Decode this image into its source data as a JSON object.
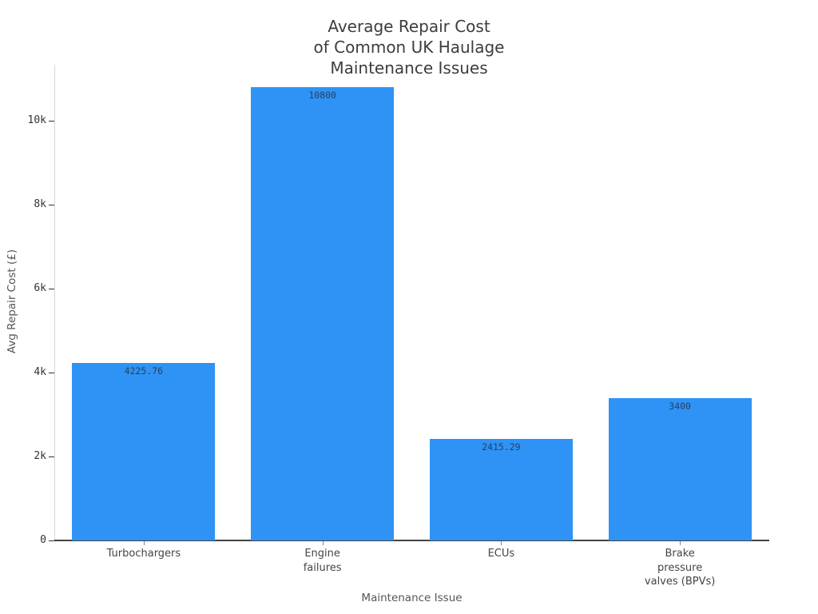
{
  "chart_data": {
    "type": "bar",
    "title": "Average Repair Cost\nof Common UK Haulage\nMaintenance Issues",
    "xlabel": "Maintenance Issue",
    "ylabel": "Avg Repair Cost (£)",
    "categories": [
      "Turbochargers",
      "Engine\nfailures",
      "ECUs",
      "Brake\npressure\nvalves (BPVs)"
    ],
    "values": [
      4225.76,
      10800,
      2415.29,
      3400
    ],
    "bar_labels": [
      "4225.76",
      "10800",
      "2415.29",
      "3400"
    ],
    "yticks": [
      {
        "value": 0,
        "label": "0"
      },
      {
        "value": 2000,
        "label": "2k"
      },
      {
        "value": 4000,
        "label": "4k"
      },
      {
        "value": 6000,
        "label": "6k"
      },
      {
        "value": 8000,
        "label": "8k"
      },
      {
        "value": 10000,
        "label": "10k"
      }
    ],
    "ylim": [
      0,
      11450
    ],
    "bar_color": "#2e93f5",
    "bar_label_color": "#2a3f5f",
    "background_color": "#ffffff",
    "grid": false,
    "legend": false
  }
}
